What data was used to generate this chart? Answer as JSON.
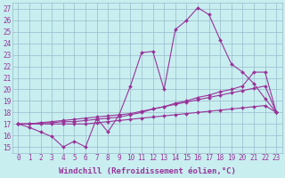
{
  "xlabel": "Windchill (Refroidissement éolien,°C)",
  "x_hours": [
    0,
    1,
    2,
    3,
    4,
    5,
    6,
    7,
    8,
    9,
    10,
    11,
    12,
    13,
    14,
    15,
    16,
    17,
    18,
    19,
    20,
    21,
    22,
    23
  ],
  "line1": [
    17.0,
    16.7,
    16.3,
    15.9,
    15.0,
    15.5,
    15.0,
    17.5,
    16.3,
    17.8,
    20.3,
    23.2,
    23.3,
    20.0,
    25.2,
    26.0,
    27.1,
    26.5,
    24.3,
    22.2,
    21.5,
    20.5,
    19.2,
    18.0
  ],
  "line2": [
    17.0,
    17.0,
    17.1,
    17.1,
    17.2,
    17.2,
    17.3,
    17.4,
    17.5,
    17.6,
    17.8,
    18.0,
    18.3,
    18.5,
    18.8,
    19.0,
    19.3,
    19.5,
    19.8,
    20.0,
    20.3,
    21.5,
    21.5,
    18.0
  ],
  "line3": [
    17.0,
    17.0,
    17.1,
    17.2,
    17.3,
    17.4,
    17.5,
    17.6,
    17.7,
    17.8,
    17.9,
    18.1,
    18.3,
    18.5,
    18.7,
    18.9,
    19.1,
    19.3,
    19.5,
    19.7,
    19.9,
    20.1,
    20.3,
    18.0
  ],
  "line4": [
    17.0,
    17.0,
    17.0,
    17.0,
    17.0,
    17.0,
    17.0,
    17.1,
    17.2,
    17.3,
    17.4,
    17.5,
    17.6,
    17.7,
    17.8,
    17.9,
    18.0,
    18.1,
    18.2,
    18.3,
    18.4,
    18.5,
    18.6,
    18.0
  ],
  "line_color": "#993399",
  "bg_color": "#c8eef0",
  "grid_color": "#99bbcc",
  "ylim_min": 14.5,
  "ylim_max": 27.5,
  "yticks": [
    15,
    16,
    17,
    18,
    19,
    20,
    21,
    22,
    23,
    24,
    25,
    26,
    27
  ],
  "tick_fontsize": 5.5,
  "xlabel_fontsize": 6.5
}
